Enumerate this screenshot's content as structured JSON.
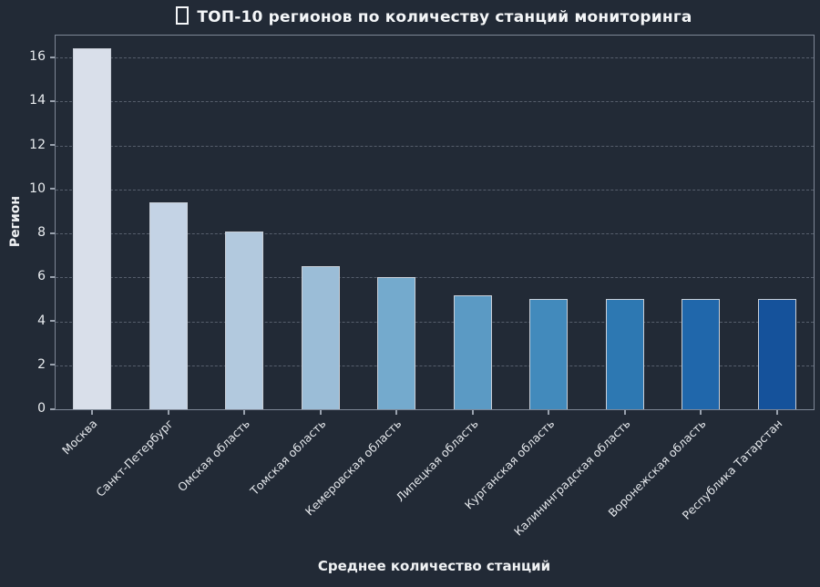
{
  "chart_data": {
    "type": "bar",
    "title": "ТОП-10 регионов по количеству станций мониторинга",
    "title_icon": "missing-glyph-box",
    "xlabel": "Среднее количество станций",
    "ylabel": "Регион",
    "categories": [
      "Москва",
      "Санкт-Петербург",
      "Омская область",
      "Томская область",
      "Кемеровская область",
      "Липецкая область",
      "Курганская область",
      "Калининградская область",
      "Воронежская область",
      "Республика Татарстан"
    ],
    "values": [
      16.4,
      9.4,
      8.1,
      6.5,
      6.0,
      5.2,
      5.0,
      5.0,
      5.0,
      5.0
    ],
    "bar_colors": [
      "#d9dfea",
      "#c4d3e5",
      "#b2c9de",
      "#9bbdd7",
      "#74aacd",
      "#5b9ac4",
      "#428abc",
      "#2d78b2",
      "#2067ab",
      "#15529b"
    ],
    "bar_edge_color": "#c9cfd8",
    "yticks": [
      0,
      2,
      4,
      6,
      8,
      10,
      12,
      14,
      16
    ],
    "ylim": [
      0,
      17
    ],
    "grid": {
      "axis": "y",
      "style": "dashed",
      "color": "#565e6c"
    },
    "legend": "none",
    "colors": {
      "background": "#222a36",
      "spine": "#7e8796",
      "tick_mark": "#9aa2ae",
      "tick_label": "#e9ecef",
      "title": "#f4f6f8",
      "axis_label": "#f0f2f4"
    }
  }
}
